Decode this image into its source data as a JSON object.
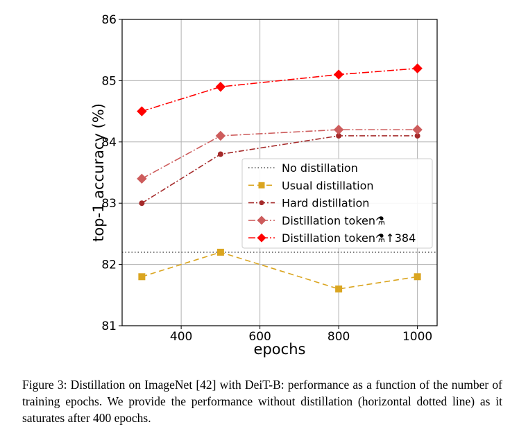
{
  "chart_data": {
    "type": "line",
    "xlabel": "epochs",
    "ylabel": "top-1 accuracy (%)",
    "xlim": [
      250,
      1050
    ],
    "ylim": [
      81,
      86
    ],
    "xticks": [
      400,
      600,
      800,
      1000
    ],
    "yticks": [
      81,
      82,
      83,
      84,
      85,
      86
    ],
    "grid": true,
    "legend_position": "center-right",
    "baseline": {
      "name": "No distillation",
      "y": 82.2,
      "style": "dotted",
      "color": "#555555"
    },
    "series": [
      {
        "name": "Usual distillation",
        "color": "#DAA520",
        "marker": "square",
        "dash": "8,5",
        "x": [
          300,
          500,
          800,
          1000
        ],
        "y": [
          81.8,
          82.2,
          81.6,
          81.8
        ]
      },
      {
        "name": "Hard distillation",
        "color": "#A52A2A",
        "marker": "circle",
        "dash": "8,3,2,3",
        "x": [
          300,
          500,
          800,
          1000
        ],
        "y": [
          83.0,
          83.8,
          84.1,
          84.1
        ]
      },
      {
        "name": "Distillation token⚗",
        "color": "#CD5C5C",
        "marker": "diamond",
        "dash": "10,3,2,3",
        "x": [
          300,
          500,
          800,
          1000
        ],
        "y": [
          83.4,
          84.1,
          84.2,
          84.2
        ]
      },
      {
        "name": "Distillation token⚗↑384",
        "color": "#FF0000",
        "marker": "diamond",
        "dash": "10,3,2,3",
        "x": [
          300,
          500,
          800,
          1000
        ],
        "y": [
          84.5,
          84.9,
          85.1,
          85.2
        ]
      }
    ]
  },
  "caption": "Figure 3: Distillation on ImageNet [42] with DeiT-B: performance as a function of the number of training epochs. We provide the performance without distillation (horizontal dotted line) as it saturates after 400 epochs."
}
